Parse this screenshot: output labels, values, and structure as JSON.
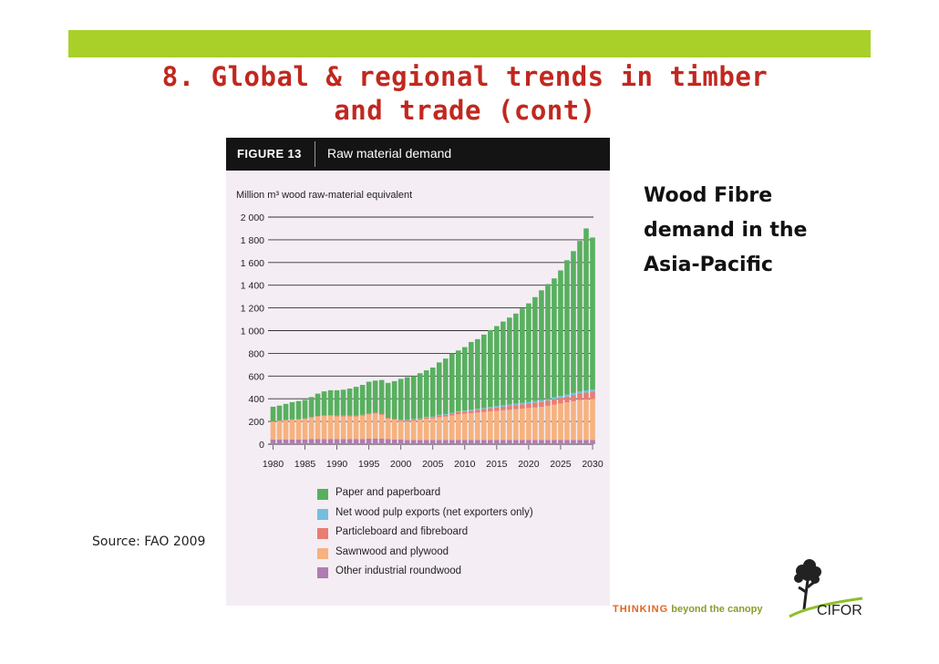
{
  "slide": {
    "title_line1": "8. Global & regional trends in timber",
    "title_line2": "and trade (cont)",
    "side_text": [
      "Wood Fibre",
      "demand in the",
      "Asia-Pacific"
    ],
    "source": "Source: FAO 2009",
    "tagline_accent": "THINKING",
    "tagline_rest": "beyond the canopy",
    "logo_text": "CIFOR",
    "colors": {
      "top_bar": "#a9d029",
      "title": "#c0281f",
      "figure_bg": "#f5edf4",
      "tag_accent": "#e2651e",
      "tag_text": "#8d9b2e"
    }
  },
  "figure": {
    "number": "FIGURE  13",
    "title": "Raw material demand"
  },
  "chart_data": {
    "type": "bar",
    "stacked": true,
    "ylabel": "Million m³ wood raw-material equivalent",
    "ylim": [
      0,
      2000
    ],
    "yticks": [
      "0",
      "200",
      "400",
      "600",
      "800",
      "1 000",
      "1 200",
      "1 400",
      "1 600",
      "1 800",
      "2 000"
    ],
    "xticks": [
      "1980",
      "1985",
      "1990",
      "1995",
      "2000",
      "2005",
      "2010",
      "2015",
      "2020",
      "2025",
      "2030"
    ],
    "categories": [
      1980,
      1981,
      1982,
      1983,
      1984,
      1985,
      1986,
      1987,
      1988,
      1989,
      1990,
      1991,
      1992,
      1993,
      1994,
      1995,
      1996,
      1997,
      1998,
      1999,
      2000,
      2001,
      2002,
      2003,
      2004,
      2005,
      2006,
      2007,
      2008,
      2009,
      2010,
      2011,
      2012,
      2013,
      2014,
      2015,
      2016,
      2017,
      2018,
      2019,
      2020,
      2021,
      2022,
      2023,
      2024,
      2025,
      2026,
      2027,
      2028,
      2029,
      2030
    ],
    "grid": true,
    "legend": "bottom",
    "series": [
      {
        "name": "Other industrial roundwood",
        "color": "#b07cb2",
        "values": [
          40,
          40,
          40,
          42,
          42,
          42,
          44,
          44,
          44,
          45,
          45,
          45,
          45,
          45,
          46,
          48,
          50,
          48,
          44,
          42,
          40,
          36,
          36,
          36,
          38,
          38,
          38,
          38,
          38,
          38,
          38,
          38,
          38,
          38,
          38,
          38,
          38,
          38,
          38,
          38,
          38,
          38,
          38,
          38,
          38,
          38,
          38,
          38,
          38,
          38,
          38
        ]
      },
      {
        "name": "Sawnwood and plywood",
        "color": "#f6b27f",
        "values": [
          160,
          165,
          170,
          172,
          175,
          180,
          190,
          200,
          205,
          205,
          200,
          200,
          200,
          200,
          205,
          215,
          220,
          210,
          180,
          175,
          165,
          165,
          172,
          178,
          185,
          190,
          200,
          205,
          215,
          225,
          230,
          235,
          240,
          245,
          250,
          255,
          260,
          265,
          270,
          275,
          280,
          285,
          290,
          300,
          310,
          320,
          330,
          340,
          350,
          355,
          360
        ]
      },
      {
        "name": "Particleboard and fibreboard",
        "color": "#e87e71",
        "values": [
          4,
          4,
          4,
          4,
          5,
          5,
          5,
          5,
          6,
          6,
          6,
          6,
          7,
          7,
          8,
          8,
          8,
          8,
          8,
          8,
          8,
          9,
          10,
          10,
          11,
          12,
          14,
          15,
          17,
          19,
          20,
          22,
          24,
          26,
          28,
          30,
          32,
          34,
          36,
          38,
          40,
          42,
          44,
          46,
          48,
          50,
          52,
          55,
          58,
          62,
          65
        ]
      },
      {
        "name": "Net wood pulp exports (net exporters only)",
        "color": "#72c0de",
        "values": [
          0,
          0,
          0,
          0,
          0,
          0,
          0,
          0,
          0,
          0,
          0,
          0,
          0,
          0,
          0,
          0,
          0,
          0,
          0,
          0,
          4,
          4,
          4,
          5,
          5,
          5,
          6,
          6,
          7,
          8,
          8,
          9,
          10,
          10,
          11,
          12,
          12,
          13,
          14,
          14,
          15,
          15,
          16,
          16,
          17,
          17,
          18,
          18,
          18,
          18,
          18
        ]
      },
      {
        "name": "Paper and paperboard",
        "color": "#58b05f",
        "values": [
          126,
          131,
          141,
          152,
          158,
          163,
          176,
          196,
          210,
          219,
          224,
          229,
          238,
          253,
          263,
          279,
          282,
          299,
          308,
          330,
          358,
          376,
          378,
          396,
          411,
          430,
          462,
          490,
          523,
          535,
          559,
          596,
          613,
          646,
          678,
          705,
          738,
          765,
          792,
          830,
          867,
          915,
          967,
          1010,
          1047,
          1105,
          1182,
          1249,
          1326,
          1427,
          1339
        ]
      }
    ]
  },
  "legend_items": [
    {
      "label": "Paper and paperboard",
      "color": "#58b05f"
    },
    {
      "label": "Net wood pulp exports (net exporters only)",
      "color": "#72c0de"
    },
    {
      "label": "Particleboard and fibreboard",
      "color": "#e87e71"
    },
    {
      "label": "Sawnwood and plywood",
      "color": "#f6b27f"
    },
    {
      "label": "Other industrial roundwood",
      "color": "#b07cb2"
    }
  ]
}
